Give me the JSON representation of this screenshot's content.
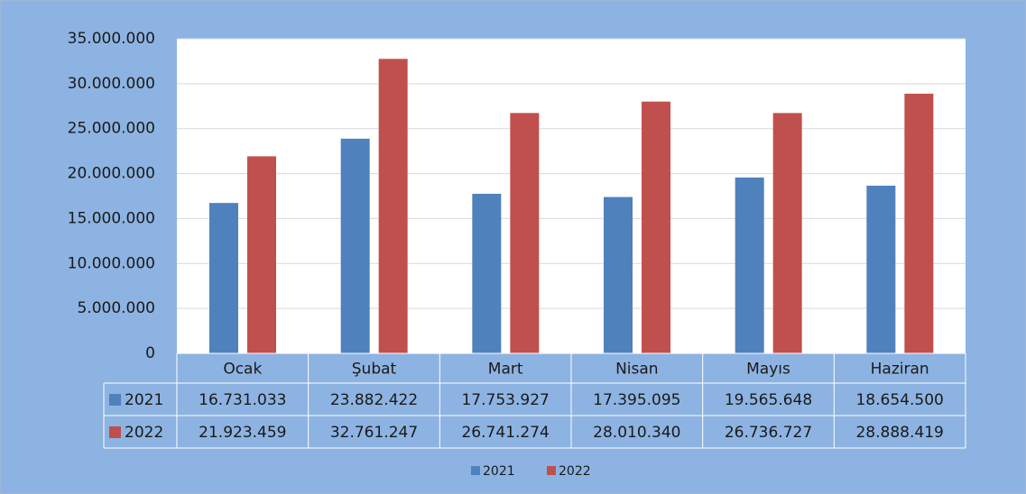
{
  "chart_data": {
    "type": "bar",
    "categories": [
      "Ocak",
      "Şubat",
      "Mart",
      "Nisan",
      "Mayıs",
      "Haziran"
    ],
    "series": [
      {
        "name": "2021",
        "color": "#4f81bd",
        "values": [
          16731033,
          23882422,
          17753927,
          17395095,
          19565648,
          18654500
        ],
        "value_labels": [
          "16.731.033",
          "23.882.422",
          "17.753.927",
          "17.395.095",
          "19.565.648",
          "18.654.500"
        ]
      },
      {
        "name": "2022",
        "color": "#c0504d",
        "values": [
          21923459,
          32761247,
          26741274,
          28010340,
          26736727,
          28888419
        ],
        "value_labels": [
          "21.923.459",
          "32.761.247",
          "26.741.274",
          "28.010.340",
          "26.736.727",
          "28.888.419"
        ]
      }
    ],
    "ylim": [
      0,
      35000000
    ],
    "yticks": [
      0,
      {
        "value": 5000000,
        "label": "5.000.000"
      },
      {
        "value": 10000000,
        "label": "10.000.000"
      },
      {
        "value": 15000000,
        "label": "15.000.000"
      },
      {
        "value": 20000000,
        "label": "20.000.000"
      },
      {
        "value": 25000000,
        "label": "25.000.000"
      },
      {
        "value": 30000000,
        "label": "30.000.000"
      },
      {
        "value": 35000000,
        "label": "35.000.000"
      }
    ],
    "grid": true,
    "legend": "bottom",
    "data_table": true
  }
}
